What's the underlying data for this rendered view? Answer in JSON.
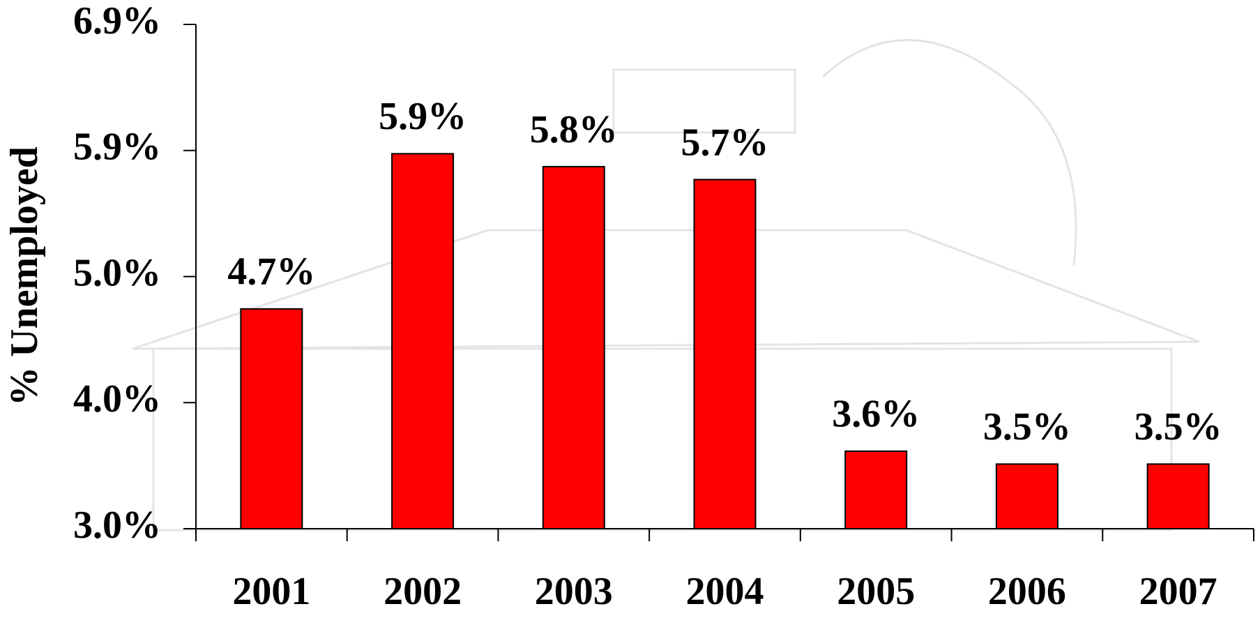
{
  "chart_data": {
    "type": "bar",
    "y_label": "% Unemployed",
    "categories": [
      "2001",
      "2002",
      "2003",
      "2004",
      "2005",
      "2006",
      "2007"
    ],
    "values": [
      4.7,
      5.9,
      5.8,
      5.7,
      3.6,
      3.5,
      3.5
    ],
    "value_labels": [
      "4.7%",
      "5.9%",
      "5.8%",
      "5.7%",
      "3.6%",
      "3.5%",
      "3.5%"
    ],
    "color": "#ff0000",
    "ylim": [
      3.0,
      6.9
    ],
    "yticks": [
      {
        "value": 3.0,
        "label": "3.0%"
      },
      {
        "value": 3.975,
        "label": "4.0%"
      },
      {
        "value": 4.95,
        "label": "5.0%"
      },
      {
        "value": 5.925,
        "label": "5.9%"
      },
      {
        "value": 6.9,
        "label": "6.9%"
      }
    ]
  }
}
